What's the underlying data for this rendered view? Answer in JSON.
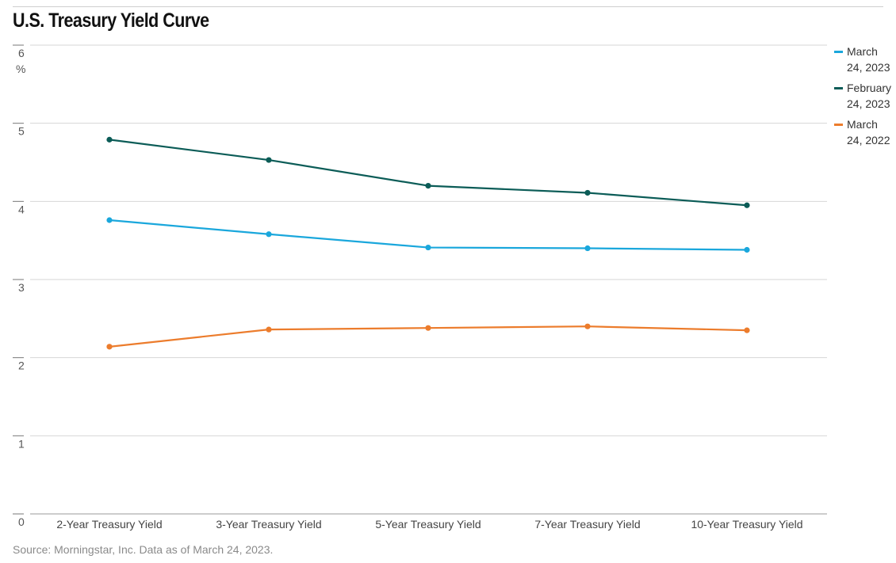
{
  "chart_data": {
    "type": "line",
    "title": "U.S. Treasury Yield Curve",
    "ylabel": "%",
    "ylim": [
      0,
      6
    ],
    "yticks": [
      0,
      1,
      2,
      3,
      4,
      5,
      6
    ],
    "grid": true,
    "legend_position": "right",
    "categories": [
      "2-Year Treasury Yield",
      "3-Year Treasury Yield",
      "5-Year Treasury Yield",
      "7-Year Treasury Yield",
      "10-Year Treasury Yield"
    ],
    "series": [
      {
        "name": "March 24, 2023",
        "name_lines": [
          "March",
          "24, 2023"
        ],
        "color": "#1aa7dc",
        "values": [
          3.76,
          3.58,
          3.41,
          3.4,
          3.38
        ]
      },
      {
        "name": "February 24, 2023",
        "name_lines": [
          "February",
          "24, 2023"
        ],
        "color": "#0b5c57",
        "values": [
          4.79,
          4.53,
          4.2,
          4.11,
          3.95
        ]
      },
      {
        "name": "March 24, 2022",
        "name_lines": [
          "March",
          "24, 2022"
        ],
        "color": "#ec7c2c",
        "values": [
          2.14,
          2.36,
          2.38,
          2.4,
          2.35
        ]
      }
    ],
    "source": "Source: Morningstar, Inc. Data as of March 24, 2023."
  }
}
